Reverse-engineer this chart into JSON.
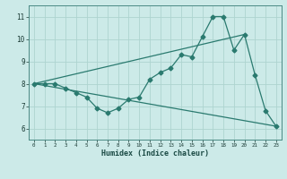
{
  "xlabel": "Humidex (Indice chaleur)",
  "xlim": [
    -0.5,
    23.5
  ],
  "ylim": [
    5.5,
    11.5
  ],
  "xticks": [
    0,
    1,
    2,
    3,
    4,
    5,
    6,
    7,
    8,
    9,
    10,
    11,
    12,
    13,
    14,
    15,
    16,
    17,
    18,
    19,
    20,
    21,
    22,
    23
  ],
  "yticks": [
    6,
    7,
    8,
    9,
    10,
    11
  ],
  "bg_color": "#cceae8",
  "line_color": "#2a7a6f",
  "grid_color": "#aed4d0",
  "line1_x": [
    0,
    1,
    2,
    3,
    4,
    5,
    6,
    7,
    8,
    9,
    10,
    11,
    12,
    13,
    14,
    15,
    16,
    17,
    18,
    19,
    20,
    21,
    22,
    23
  ],
  "line1_y": [
    8.0,
    8.0,
    8.0,
    7.8,
    7.6,
    7.4,
    6.9,
    6.7,
    6.9,
    7.3,
    7.4,
    8.2,
    8.5,
    8.7,
    9.3,
    9.2,
    10.1,
    11.0,
    11.0,
    9.5,
    10.2,
    8.4,
    6.8,
    6.1
  ],
  "line2_x": [
    0,
    23
  ],
  "line2_y": [
    8.0,
    6.1
  ],
  "line3_x": [
    0,
    20
  ],
  "line3_y": [
    8.0,
    10.2
  ],
  "marker_size": 2.5,
  "line_width": 0.9
}
